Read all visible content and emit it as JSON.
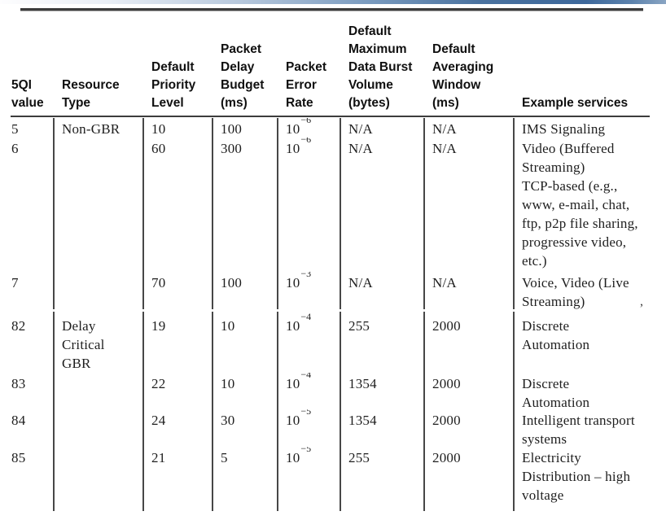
{
  "table": {
    "title_semantic": "5QI QoS characteristics table",
    "headers": {
      "qi": "5QI\nvalue",
      "resource_type": "Resource\nType",
      "priority": "Default\nPriority\nLevel",
      "delay_budget": "Packet\nDelay\nBudget\n(ms)",
      "error_rate": "Packet\nError\nRate",
      "burst_volume": "Default\nMaximum\nData Burst\nVolume\n(bytes)",
      "averaging_window": "Default\nAveraging\nWindow\n(ms)",
      "services": "Example services"
    },
    "sections": [
      {
        "rows": [
          {
            "qi": "5",
            "resource_type": "Non-GBR",
            "priority": "10",
            "delay_budget": "100",
            "per_base": "10",
            "per_exp": "−6",
            "burst_volume": "N/A",
            "averaging_window": "N/A",
            "services": "IMS Signaling"
          },
          {
            "qi": "6",
            "resource_type": "",
            "priority": "60",
            "delay_budget": "300",
            "per_base": "10",
            "per_exp": "−6",
            "burst_volume": "N/A",
            "averaging_window": "N/A",
            "services": "Video (Buffered\nStreaming)\nTCP-based (e.g.,\nwww, e-mail, chat,\nftp, p2p file sharing,\nprogressive video,\netc.)"
          },
          {
            "qi": "7",
            "resource_type": "",
            "priority": "70",
            "delay_budget": "100",
            "per_base": "10",
            "per_exp": "−3",
            "burst_volume": "N/A",
            "averaging_window": "N/A",
            "services": "Voice, Video (Live\nStreaming)"
          }
        ]
      },
      {
        "rows": [
          {
            "qi": "82",
            "resource_type": "Delay\nCritical\nGBR",
            "priority": "19",
            "delay_budget": "10",
            "per_base": "10",
            "per_exp": "−4",
            "burst_volume": "255",
            "averaging_window": "2000",
            "services": "Discrete\nAutomation"
          },
          {
            "qi": "83",
            "resource_type": "",
            "priority": "22",
            "delay_budget": "10",
            "per_base": "10",
            "per_exp": "−4",
            "burst_volume": "1354",
            "averaging_window": "2000",
            "services": "Discrete\nAutomation"
          },
          {
            "qi": "84",
            "resource_type": "",
            "priority": "24",
            "delay_budget": "30",
            "per_base": "10",
            "per_exp": "−5",
            "burst_volume": "1354",
            "averaging_window": "2000",
            "services": "Intelligent transport\nsystems"
          },
          {
            "qi": "85",
            "resource_type": "",
            "priority": "21",
            "delay_budget": "5",
            "per_base": "10",
            "per_exp": "−5",
            "burst_volume": "255",
            "averaging_window": "2000",
            "services": "Electricity\nDistribution – high\nvoltage"
          }
        ]
      }
    ]
  },
  "artifact_mark": ",",
  "colors": {
    "rule": "#3c3c3c",
    "text": "#1e1e1e",
    "accent_left": "#fdfdfe",
    "accent_right": "#3d689b"
  }
}
